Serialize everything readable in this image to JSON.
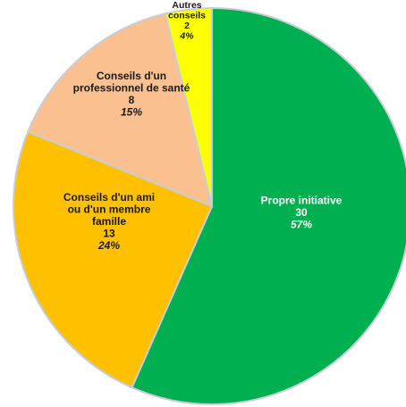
{
  "chart_data": {
    "type": "pie",
    "title": "",
    "slices": [
      {
        "label": [
          "Propre initiative"
        ],
        "value": 30,
        "percent": "57%",
        "color": "#00b050",
        "text_color": "#ffffff"
      },
      {
        "label": [
          "Conseils d'un ami",
          "ou d'un membre",
          "famille"
        ],
        "value": 13,
        "percent": "24%",
        "color": "#ffc000",
        "text_color": "#1a1a1a"
      },
      {
        "label": [
          "Conseils d'un",
          "professionnel de santé"
        ],
        "value": 8,
        "percent": "15%",
        "color": "#fac090",
        "text_color": "#1a1a1a"
      },
      {
        "label": [
          "Autres",
          "conseils"
        ],
        "value": 2,
        "percent": "4%",
        "color": "#ffff00",
        "text_color": "#1a1a1a"
      }
    ]
  }
}
